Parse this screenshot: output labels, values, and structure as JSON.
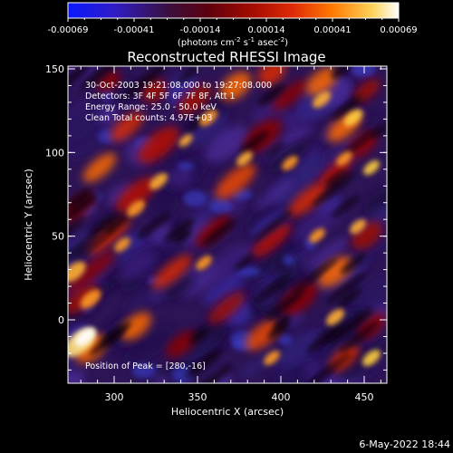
{
  "colorbar": {
    "tick_labels": [
      "-0.00069",
      "-0.00041",
      "-0.00014",
      "0.00014",
      "0.00041",
      "0.00069"
    ],
    "units_line1": "(photons cm",
    "units_sup1": "-2",
    "units_mid": " s",
    "units_sup2": "-1",
    "units_mid2": " asec",
    "units_sup3": "-2",
    "units_end": ")",
    "colors": [
      "#1020ff",
      "#3a10b0",
      "#400040",
      "#8b0000",
      "#d81f10",
      "#ff6a00",
      "#ffd040",
      "#ffffff"
    ]
  },
  "image": {
    "title": "Reconstructed RHESSI Image",
    "annotations": [
      "30-Oct-2003 19:21:08.000 to 19:27:08.000",
      "Detectors: 3F 4F 5F 6F 7F 8F, Att 1",
      "Energy Range: 25.0 - 50.0 keV",
      "Clean    Total counts: 4.97E+03"
    ],
    "peak_text": "Position of Peak = [280,-16]",
    "x_axis_label": "Heliocentric X (arcsec)",
    "y_axis_label": "Heliocentric Y (arcsec)",
    "x_ticks": [
      "300",
      "350",
      "400",
      "450"
    ],
    "y_ticks": [
      "150",
      "100",
      "50",
      "0"
    ],
    "timestamp": "6-May-2022 18:44"
  }
}
